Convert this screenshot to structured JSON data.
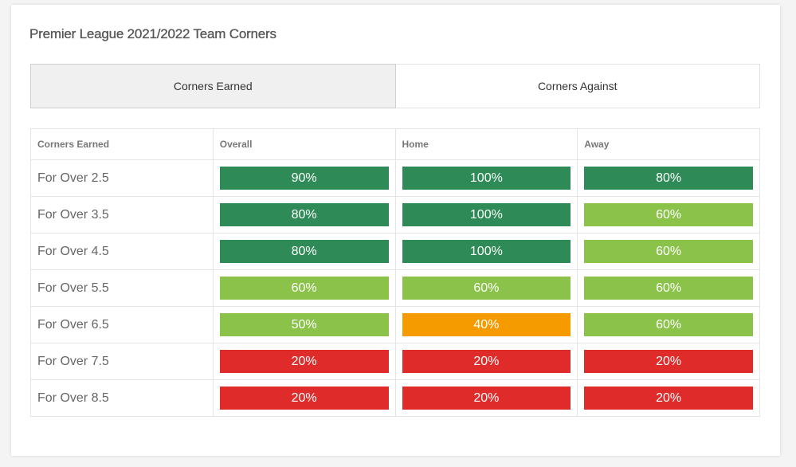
{
  "title": "Premier League 2021/2022 Team Corners",
  "tabs": [
    {
      "label": "Corners Earned",
      "active": true
    },
    {
      "label": "Corners Against",
      "active": false
    }
  ],
  "table": {
    "headers": [
      "Corners Earned",
      "Overall",
      "Home",
      "Away"
    ],
    "rows": [
      {
        "label": "For Over 2.5",
        "cells": [
          {
            "value": "90%",
            "color": "#2e8b57"
          },
          {
            "value": "100%",
            "color": "#2e8b57"
          },
          {
            "value": "80%",
            "color": "#2e8b57"
          }
        ]
      },
      {
        "label": "For Over 3.5",
        "cells": [
          {
            "value": "80%",
            "color": "#2e8b57"
          },
          {
            "value": "100%",
            "color": "#2e8b57"
          },
          {
            "value": "60%",
            "color": "#8bc34a"
          }
        ]
      },
      {
        "label": "For Over 4.5",
        "cells": [
          {
            "value": "80%",
            "color": "#2e8b57"
          },
          {
            "value": "100%",
            "color": "#2e8b57"
          },
          {
            "value": "60%",
            "color": "#8bc34a"
          }
        ]
      },
      {
        "label": "For Over 5.5",
        "cells": [
          {
            "value": "60%",
            "color": "#8bc34a"
          },
          {
            "value": "60%",
            "color": "#8bc34a"
          },
          {
            "value": "60%",
            "color": "#8bc34a"
          }
        ]
      },
      {
        "label": "For Over 6.5",
        "cells": [
          {
            "value": "50%",
            "color": "#8bc34a"
          },
          {
            "value": "40%",
            "color": "#f59b00"
          },
          {
            "value": "60%",
            "color": "#8bc34a"
          }
        ]
      },
      {
        "label": "For Over 7.5",
        "cells": [
          {
            "value": "20%",
            "color": "#e02b2b"
          },
          {
            "value": "20%",
            "color": "#e02b2b"
          },
          {
            "value": "20%",
            "color": "#e02b2b"
          }
        ]
      },
      {
        "label": "For Over 8.5",
        "cells": [
          {
            "value": "20%",
            "color": "#e02b2b"
          },
          {
            "value": "20%",
            "color": "#e02b2b"
          },
          {
            "value": "20%",
            "color": "#e02b2b"
          }
        ]
      }
    ]
  }
}
